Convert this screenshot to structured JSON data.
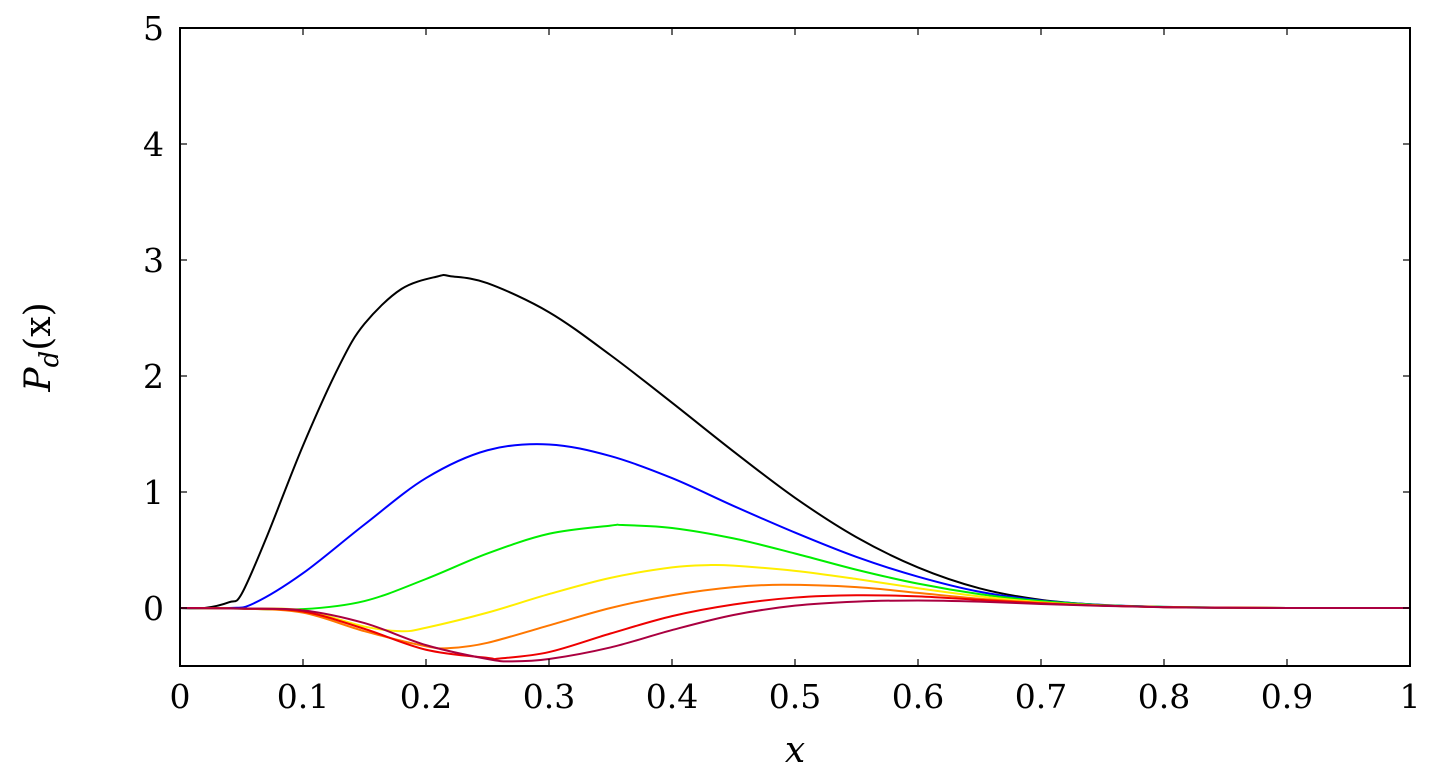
{
  "chart_data": {
    "type": "line",
    "title": "",
    "xlabel": "x",
    "ylabel_main": "P",
    "ylabel_sub": "d",
    "ylabel_arg": "(x)",
    "xlim": [
      0,
      1
    ],
    "ylim": [
      -0.5,
      5
    ],
    "x_ticks": [
      0,
      0.1,
      0.2,
      0.3,
      0.4,
      0.5,
      0.6,
      0.7,
      0.8,
      0.9,
      1
    ],
    "x_tick_labels": [
      "0",
      "0.1",
      "0.2",
      "0.3",
      "0.4",
      "0.5",
      "0.6",
      "0.7",
      "0.8",
      "0.9",
      "1"
    ],
    "y_ticks": [
      0,
      1,
      2,
      3,
      4,
      5
    ],
    "y_tick_labels": [
      "0",
      "1",
      "2",
      "3",
      "4",
      "5"
    ],
    "grid": false,
    "legend": "none",
    "series": [
      {
        "color": "#000000",
        "x": [
          0,
          0.02,
          0.04,
          0.05,
          0.07,
          0.1,
          0.13,
          0.15,
          0.18,
          0.21,
          0.22,
          0.25,
          0.3,
          0.35,
          0.4,
          0.45,
          0.5,
          0.55,
          0.6,
          0.65,
          0.7,
          0.75,
          0.8,
          0.85,
          0.9,
          1
        ],
        "y": [
          0,
          0,
          0.05,
          0.12,
          0.6,
          1.4,
          2.1,
          2.45,
          2.75,
          2.86,
          2.86,
          2.8,
          2.55,
          2.18,
          1.77,
          1.35,
          0.95,
          0.61,
          0.35,
          0.17,
          0.07,
          0.025,
          0.008,
          0.002,
          0,
          0
        ]
      },
      {
        "color": "#0000ff",
        "x": [
          0,
          0.04,
          0.06,
          0.1,
          0.15,
          0.2,
          0.25,
          0.3,
          0.35,
          0.4,
          0.45,
          0.5,
          0.55,
          0.6,
          0.65,
          0.7,
          0.75,
          0.8,
          0.85,
          0.9,
          1
        ],
        "y": [
          0,
          0,
          0.04,
          0.3,
          0.72,
          1.12,
          1.36,
          1.41,
          1.31,
          1.12,
          0.88,
          0.65,
          0.44,
          0.27,
          0.14,
          0.065,
          0.027,
          0.01,
          0.003,
          0,
          0
        ]
      },
      {
        "color": "#00ee00",
        "x": [
          0,
          0.05,
          0.1,
          0.15,
          0.2,
          0.25,
          0.3,
          0.35,
          0.36,
          0.4,
          0.45,
          0.5,
          0.55,
          0.6,
          0.65,
          0.7,
          0.75,
          0.8,
          0.85,
          0.9,
          1
        ],
        "y": [
          0,
          -0.005,
          -0.01,
          0.06,
          0.25,
          0.47,
          0.64,
          0.71,
          0.715,
          0.69,
          0.6,
          0.47,
          0.33,
          0.21,
          0.12,
          0.06,
          0.025,
          0.01,
          0.003,
          0,
          0
        ]
      },
      {
        "color": "#ffee00",
        "x": [
          0,
          0.05,
          0.1,
          0.15,
          0.18,
          0.2,
          0.25,
          0.3,
          0.35,
          0.4,
          0.43,
          0.45,
          0.5,
          0.55,
          0.6,
          0.65,
          0.7,
          0.75,
          0.8,
          0.85,
          0.9,
          1
        ],
        "y": [
          0,
          -0.005,
          -0.02,
          -0.16,
          -0.2,
          -0.17,
          -0.04,
          0.12,
          0.26,
          0.35,
          0.37,
          0.365,
          0.32,
          0.25,
          0.17,
          0.1,
          0.05,
          0.022,
          0.008,
          0.003,
          0,
          0
        ]
      },
      {
        "color": "#ff7700",
        "x": [
          0,
          0.05,
          0.1,
          0.15,
          0.2,
          0.22,
          0.25,
          0.3,
          0.35,
          0.4,
          0.45,
          0.49,
          0.55,
          0.6,
          0.65,
          0.7,
          0.75,
          0.8,
          0.85,
          0.9,
          1
        ],
        "y": [
          0,
          -0.005,
          -0.04,
          -0.2,
          -0.33,
          -0.345,
          -0.3,
          -0.15,
          0.0,
          0.11,
          0.18,
          0.2,
          0.18,
          0.13,
          0.08,
          0.045,
          0.02,
          0.008,
          0.003,
          0,
          0
        ]
      },
      {
        "color": "#ee0000",
        "x": [
          0,
          0.05,
          0.1,
          0.15,
          0.2,
          0.25,
          0.26,
          0.3,
          0.35,
          0.4,
          0.45,
          0.5,
          0.55,
          0.6,
          0.65,
          0.7,
          0.75,
          0.8,
          0.85,
          0.9,
          1
        ],
        "y": [
          0,
          -0.005,
          -0.03,
          -0.18,
          -0.36,
          -0.43,
          -0.435,
          -0.38,
          -0.22,
          -0.07,
          0.03,
          0.09,
          0.11,
          0.1,
          0.07,
          0.04,
          0.02,
          0.008,
          0.003,
          0,
          0
        ]
      },
      {
        "color": "#aa0040",
        "x": [
          0,
          0.05,
          0.1,
          0.15,
          0.2,
          0.25,
          0.27,
          0.3,
          0.35,
          0.4,
          0.45,
          0.5,
          0.55,
          0.6,
          0.65,
          0.7,
          0.75,
          0.8,
          0.85,
          0.9,
          1
        ],
        "y": [
          0,
          -0.005,
          -0.02,
          -0.13,
          -0.32,
          -0.44,
          -0.46,
          -0.44,
          -0.34,
          -0.19,
          -0.06,
          0.02,
          0.055,
          0.065,
          0.055,
          0.035,
          0.018,
          0.007,
          0.002,
          0,
          0
        ]
      }
    ]
  }
}
